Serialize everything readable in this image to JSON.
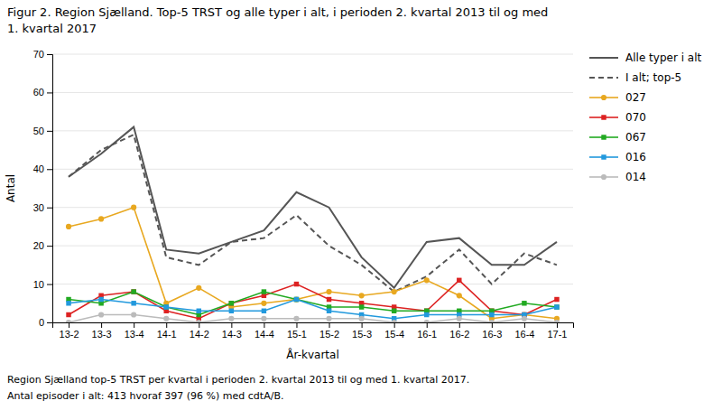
{
  "chart_data": {
    "type": "line",
    "title": "Figur 2. Region Sjælland. Top-5 TRST og alle typer i alt, i perioden 2. kvartal 2013 til og med",
    "subtitle": "1. kvartal 2017",
    "xlabel": "År-kvartal",
    "ylabel": "Antal",
    "annotations": [
      "Region Sjælland top-5 TRST per kvartal i perioden 2. kvartal 2013 til og med 1. kvartal 2017.",
      "Antal episoder i alt: 413 hvoraf 397 (96 %) med cdtA/B."
    ],
    "categories": [
      "13-2",
      "13-3",
      "13-4",
      "14-1",
      "14-2",
      "14-3",
      "14-4",
      "15-1",
      "15-2",
      "15-3",
      "15-4",
      "16-1",
      "16-2",
      "16-3",
      "16-4",
      "17-1"
    ],
    "series": [
      {
        "name": "Alle typer i alt",
        "color": "#555555",
        "line_style": "solid",
        "values": [
          38,
          44,
          51,
          19,
          18,
          21,
          24,
          34,
          30,
          17,
          9,
          21,
          22,
          15,
          15,
          21
        ]
      },
      {
        "name": "I alt; top-5",
        "color": "#555555",
        "line_style": "dashed",
        "values": [
          38,
          45,
          49,
          17,
          15,
          21,
          22,
          28,
          20,
          15,
          8,
          12,
          19,
          10,
          18,
          15
        ]
      },
      {
        "name": "027",
        "color": "#E8A820",
        "line_style": "solid",
        "marker": "circle",
        "values": [
          25,
          27,
          30,
          5,
          9,
          4,
          5,
          6,
          8,
          7,
          8,
          11,
          7,
          1,
          2,
          1
        ]
      },
      {
        "name": "070",
        "color": "#DD2222",
        "line_style": "solid",
        "marker": "square",
        "values": [
          2,
          7,
          8,
          3,
          1,
          5,
          7,
          10,
          6,
          5,
          4,
          3,
          11,
          3,
          2,
          6
        ]
      },
      {
        "name": "067",
        "color": "#22AA22",
        "line_style": "solid",
        "marker": "square",
        "values": [
          6,
          5,
          8,
          4,
          2,
          5,
          8,
          6,
          4,
          4,
          3,
          3,
          3,
          3,
          5,
          4
        ]
      },
      {
        "name": "016",
        "color": "#2299DD",
        "line_style": "solid",
        "marker": "square",
        "values": [
          5,
          6,
          5,
          4,
          3,
          3,
          3,
          6,
          3,
          2,
          1,
          2,
          2,
          2,
          2,
          4
        ]
      },
      {
        "name": "014",
        "color": "#BBBBBB",
        "line_style": "solid",
        "marker": "circle",
        "values": [
          0,
          2,
          2,
          1,
          0,
          1,
          1,
          1,
          1,
          1,
          0,
          0,
          1,
          0,
          1,
          0
        ]
      }
    ],
    "ylim": [
      0,
      70
    ],
    "yticks": [
      0,
      10,
      20,
      30,
      40,
      50,
      60,
      70
    ],
    "grid": true,
    "legend": "right"
  }
}
